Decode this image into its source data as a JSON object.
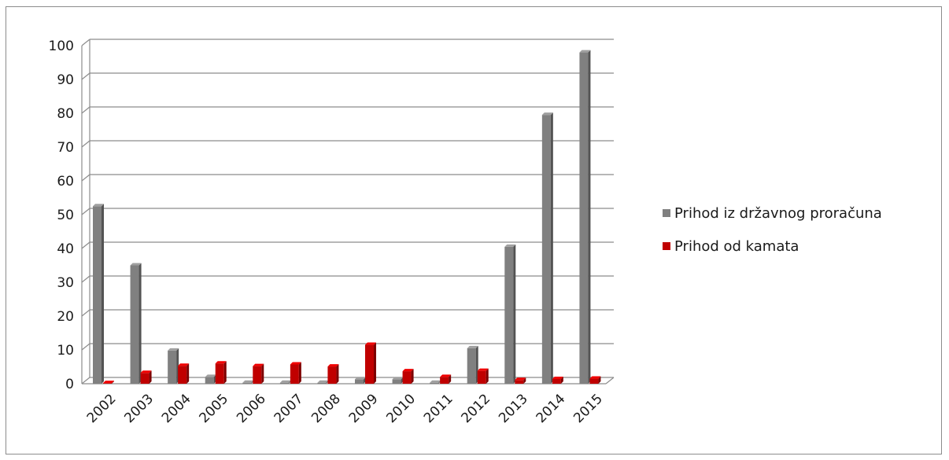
{
  "chart_data": {
    "type": "bar",
    "categories": [
      "2002",
      "2003",
      "2004",
      "2005",
      "2006",
      "2007",
      "2008",
      "2009",
      "2010",
      "2011",
      "2012",
      "2013",
      "2014",
      "2015"
    ],
    "series": [
      {
        "name": "Prihod iz državnog proračuna",
        "color": "#808080",
        "values": [
          52.5,
          35,
          9.8,
          2,
          0.3,
          0.3,
          0.3,
          1.3,
          1.3,
          0.3,
          10.5,
          40.5,
          79.5,
          98
        ]
      },
      {
        "name": "Prihod od kamata",
        "color": "#c00000",
        "values": [
          0.2,
          3.2,
          5.3,
          6,
          5.2,
          5.7,
          5.1,
          11.5,
          3.7,
          2,
          3.8,
          1.1,
          1.4,
          1.5
        ]
      }
    ],
    "yticks": [
      "0",
      "10",
      "20",
      "30",
      "40",
      "50",
      "60",
      "70",
      "80",
      "90",
      "100"
    ],
    "ylim": [
      0,
      100
    ],
    "grid": true,
    "legend_position": "right",
    "title": "",
    "xlabel": "",
    "ylabel": ""
  }
}
